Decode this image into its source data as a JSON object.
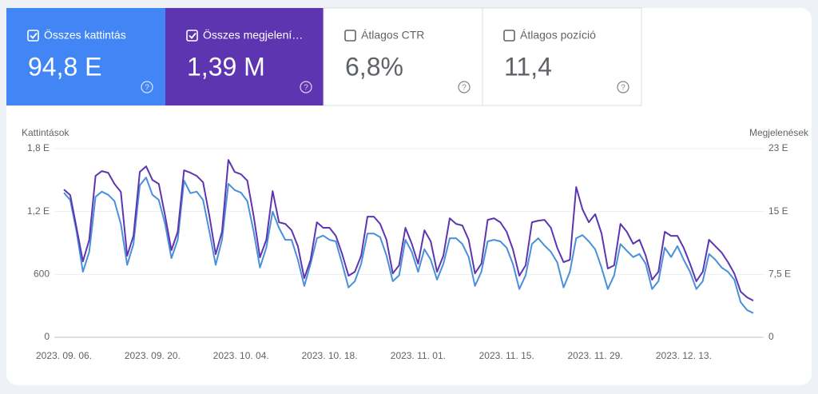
{
  "metrics": [
    {
      "label": "Összes kattintás",
      "value": "94,8 E",
      "checked": true,
      "color": "#4285f4"
    },
    {
      "label": "Összes megjelení…",
      "value": "1,39 M",
      "checked": true,
      "color": "#5e35b1"
    },
    {
      "label": "Átlagos CTR",
      "value": "6,8%",
      "checked": false,
      "color": "#ffffff"
    },
    {
      "label": "Átlagos pozíció",
      "value": "11,4",
      "checked": false,
      "color": "#ffffff"
    }
  ],
  "chart_data": {
    "type": "line",
    "y_label": "Kattintások",
    "y2_label": "Megjelenések",
    "categories": [
      "2023. 09. 06.",
      null,
      null,
      null,
      null,
      null,
      null,
      null,
      null,
      null,
      null,
      null,
      null,
      null,
      "2023. 09. 20.",
      null,
      null,
      null,
      null,
      null,
      null,
      null,
      null,
      null,
      null,
      null,
      null,
      null,
      "2023. 10. 04.",
      null,
      null,
      null,
      null,
      null,
      null,
      null,
      null,
      null,
      null,
      null,
      null,
      null,
      "2023. 10. 18.",
      null,
      null,
      null,
      null,
      null,
      null,
      null,
      null,
      null,
      null,
      null,
      null,
      null,
      "2023. 11. 01.",
      null,
      null,
      null,
      null,
      null,
      null,
      null,
      null,
      null,
      null,
      null,
      null,
      null,
      "2023. 11. 15.",
      null,
      null,
      null,
      null,
      null,
      null,
      null,
      null,
      null,
      null,
      null,
      null,
      null,
      "2023. 11. 29.",
      null,
      null,
      null,
      null,
      null,
      null,
      null,
      null,
      null,
      null,
      null,
      null,
      null,
      "2023. 12. 13.",
      null,
      null,
      null,
      null,
      null,
      null,
      null,
      null,
      null,
      null,
      null
    ],
    "ylim": [
      0,
      1800
    ],
    "yticks": [
      0,
      600,
      {
        "value": 1200,
        "label": "1,2 E"
      },
      {
        "value": 1800,
        "label": "1,8 E"
      }
    ],
    "y2lim": [
      0,
      22500
    ],
    "y2ticks": [
      0,
      {
        "value": 7500,
        "label": "7,5 E"
      },
      {
        "value": 15000,
        "label": "15 E"
      },
      {
        "value": 22500,
        "label": "23 E"
      }
    ],
    "grid": true,
    "series": [
      {
        "name": "Kattintások",
        "color": "#4a90d9",
        "values": [
          1380,
          1310,
          1010,
          625,
          815,
          1340,
          1390,
          1360,
          1300,
          1080,
          690,
          890,
          1450,
          1525,
          1360,
          1310,
          1080,
          755,
          930,
          1495,
          1375,
          1390,
          1310,
          1010,
          690,
          930,
          1465,
          1405,
          1380,
          1300,
          1010,
          665,
          855,
          1200,
          1045,
          930,
          930,
          740,
          490,
          700,
          945,
          970,
          930,
          915,
          700,
          475,
          535,
          700,
          990,
          990,
          955,
          780,
          535,
          590,
          930,
          815,
          625,
          840,
          740,
          550,
          700,
          945,
          945,
          890,
          765,
          490,
          625,
          915,
          930,
          915,
          855,
          700,
          460,
          590,
          890,
          945,
          875,
          815,
          715,
          475,
          625,
          945,
          975,
          915,
          840,
          665,
          460,
          590,
          890,
          825,
          765,
          795,
          700,
          460,
          535,
          855,
          765,
          870,
          740,
          625,
          460,
          535,
          795,
          740,
          665,
          625,
          550,
          335,
          260,
          230
        ]
      },
      {
        "name": "Megjelenések",
        "color": "#5e35b1",
        "axis": "y2",
        "values": [
          17630,
          16960,
          13060,
          9050,
          11630,
          19250,
          19820,
          19630,
          18300,
          17340,
          9720,
          12100,
          19730,
          20390,
          18770,
          18300,
          14490,
          10390,
          12580,
          19920,
          19630,
          19250,
          18490,
          14490,
          9910,
          12580,
          21160,
          19730,
          19440,
          18680,
          14490,
          9530,
          11630,
          17440,
          13720,
          13530,
          12770,
          10860,
          7050,
          9240,
          13720,
          13060,
          13060,
          12100,
          9910,
          7340,
          7810,
          9720,
          14390,
          14390,
          13530,
          11630,
          7620,
          8580,
          13060,
          11150,
          8770,
          12770,
          11440,
          7810,
          9720,
          14200,
          13530,
          13340,
          11630,
          7620,
          8770,
          14010,
          14200,
          13720,
          12580,
          10480,
          7340,
          8580,
          13720,
          13910,
          14010,
          13060,
          10670,
          8960,
          9240,
          17920,
          15250,
          13720,
          14680,
          12390,
          8200,
          8580,
          13530,
          12580,
          11150,
          11630,
          9720,
          6860,
          7810,
          12580,
          12100,
          12100,
          10670,
          8770,
          6670,
          7810,
          11630,
          10860,
          10100,
          8960,
          7620,
          5430,
          4770,
          4380
        ]
      }
    ]
  }
}
